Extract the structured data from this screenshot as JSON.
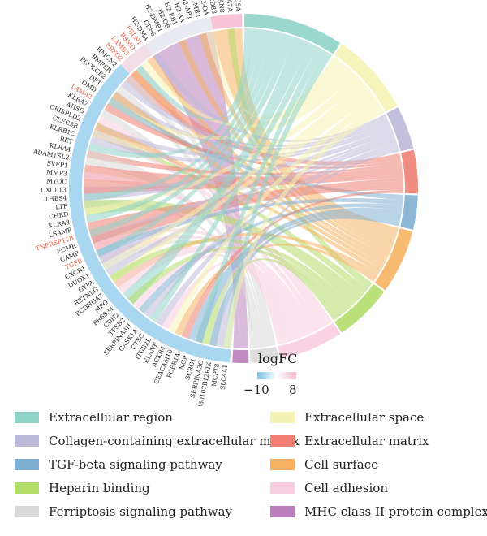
{
  "chart_data": {
    "type": "chord",
    "genes": [
      {
        "name": "CLEC9A",
        "highlight": false
      },
      {
        "name": "SEMA7A",
        "highlight": false
      },
      {
        "name": "TSPAN8",
        "highlight": false
      },
      {
        "name": "CD83",
        "highlight": false
      },
      {
        "name": "H2-OA",
        "highlight": false
      },
      {
        "name": "H2-DMB2",
        "highlight": false
      },
      {
        "name": "H2-AB1",
        "highlight": false
      },
      {
        "name": "H2-AA",
        "highlight": false
      },
      {
        "name": "H2-EB1",
        "highlight": false
      },
      {
        "name": "H2-OB",
        "highlight": false
      },
      {
        "name": "H2-DMB1",
        "highlight": false
      },
      {
        "name": "CD86",
        "highlight": false
      },
      {
        "name": "H2-DMA",
        "highlight": false
      },
      {
        "name": "FBLN1",
        "highlight": true
      },
      {
        "name": "BSMD",
        "highlight": true
      },
      {
        "name": "LAMB3",
        "highlight": true
      },
      {
        "name": "FBXO2",
        "highlight": true
      },
      {
        "name": "HMCN2",
        "highlight": false
      },
      {
        "name": "BMPER",
        "highlight": false
      },
      {
        "name": "PCOLCE2",
        "highlight": false
      },
      {
        "name": "DPT",
        "highlight": false
      },
      {
        "name": "OMD",
        "highlight": false
      },
      {
        "name": "LAMA2",
        "highlight": true
      },
      {
        "name": "KLRA7",
        "highlight": false
      },
      {
        "name": "AHSG",
        "highlight": false
      },
      {
        "name": "CRISPLD2",
        "highlight": false
      },
      {
        "name": "CLEC3B",
        "highlight": false
      },
      {
        "name": "KLRB1C",
        "highlight": false
      },
      {
        "name": "RET",
        "highlight": false
      },
      {
        "name": "KLRA4",
        "highlight": false
      },
      {
        "name": "ADAMTSL2",
        "highlight": false
      },
      {
        "name": "SVEP1",
        "highlight": false
      },
      {
        "name": "MMP3",
        "highlight": false
      },
      {
        "name": "MYOC",
        "highlight": false
      },
      {
        "name": "CXCL13",
        "highlight": false
      },
      {
        "name": "THBS4",
        "highlight": false
      },
      {
        "name": "LTF",
        "highlight": false
      },
      {
        "name": "CHRD",
        "highlight": false
      },
      {
        "name": "KLRA8",
        "highlight": false
      },
      {
        "name": "LSAMP",
        "highlight": false
      },
      {
        "name": "TNFRSF11B",
        "highlight": true
      },
      {
        "name": "FCMR",
        "highlight": false
      },
      {
        "name": "CAMP",
        "highlight": false
      },
      {
        "name": "TGFB",
        "highlight": true
      },
      {
        "name": "CXCR1",
        "highlight": false
      },
      {
        "name": "DUOX1",
        "highlight": false
      },
      {
        "name": "GYPA",
        "highlight": false
      },
      {
        "name": "RETNLG",
        "highlight": false
      },
      {
        "name": "PCDHGA7",
        "highlight": false
      },
      {
        "name": "MPO",
        "highlight": false
      },
      {
        "name": "PRSS34",
        "highlight": false
      },
      {
        "name": "CDH2",
        "highlight": false
      },
      {
        "name": "TPSB2",
        "highlight": false
      },
      {
        "name": "SERPINA3H",
        "highlight": false
      },
      {
        "name": "GASK1A",
        "highlight": false
      },
      {
        "name": "CTSG",
        "highlight": false
      },
      {
        "name": "ITGB2L",
        "highlight": false
      },
      {
        "name": "ELANE",
        "highlight": false
      },
      {
        "name": "ACKR4",
        "highlight": false
      },
      {
        "name": "CEACAM10",
        "highlight": false
      },
      {
        "name": "FCER1A",
        "highlight": false
      },
      {
        "name": "NGP",
        "highlight": false
      },
      {
        "name": "SCRG1",
        "highlight": false
      },
      {
        "name": "SERPINA3C",
        "highlight": false
      },
      {
        "name": "9830107B12RIK",
        "highlight": false
      },
      {
        "name": "MCPT8",
        "highlight": false
      },
      {
        "name": "SLC4A1",
        "highlight": false
      }
    ],
    "terms": [
      {
        "name": "Extracellular region",
        "color": "#8fd3c7"
      },
      {
        "name": "Extracellular space",
        "color": "#f5f3b3"
      },
      {
        "name": "Collagen-containing extracellular matrix",
        "color": "#bdb9d9"
      },
      {
        "name": "Extracellular matrix",
        "color": "#ef7f72"
      },
      {
        "name": "TGF-beta signaling pathway",
        "color": "#7fb0d2"
      },
      {
        "name": "Cell surface",
        "color": "#f6b262"
      },
      {
        "name": "Heparin binding",
        "color": "#b3dd6a"
      },
      {
        "name": "Cell adhesion",
        "color": "#f8cde0"
      },
      {
        "name": "Ferriptosis signaling pathway",
        "color": "#d9d9d9"
      },
      {
        "name": "MHC class II protein complex",
        "color": "#ba7fbc"
      }
    ],
    "scale": {
      "title": "logFC",
      "min": "−10",
      "max": "8",
      "low_color": "#7ec3ea",
      "mid_color": "#ffffff",
      "high_color": "#f7b6cf"
    },
    "highlight_color": "#e8583a"
  }
}
